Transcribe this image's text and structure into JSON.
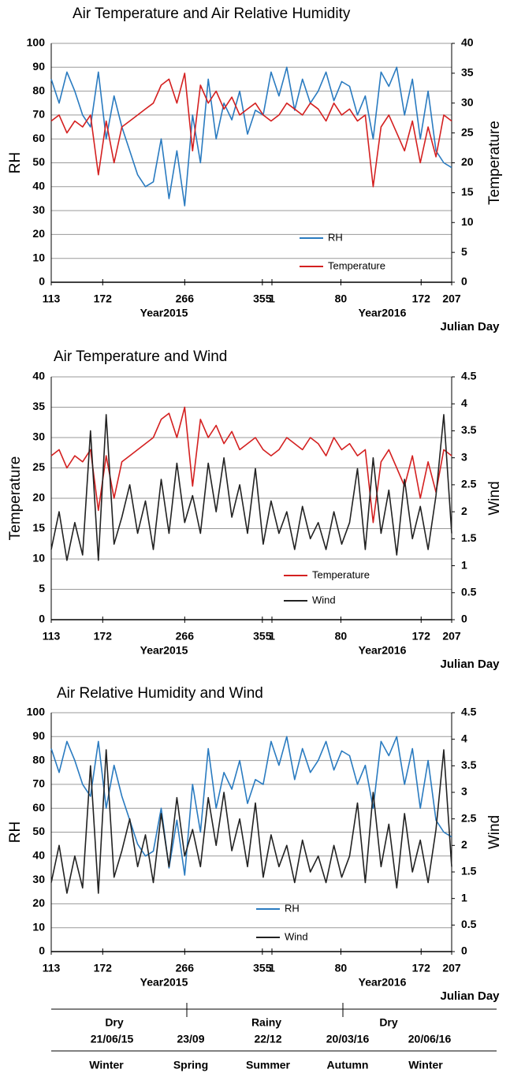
{
  "chart_data": [
    {
      "type": "line",
      "title": "Air Temperature and Air Relative Humidity",
      "ylabel": "RH",
      "y2label": "Temperature",
      "xlabel": "Julian Day",
      "x_group_labels": [
        "Year2015",
        "Year2016"
      ],
      "x": [
        113,
        122,
        131,
        140,
        149,
        158,
        167,
        176,
        185,
        194,
        203,
        212,
        221,
        230,
        239,
        248,
        257,
        266,
        275,
        284,
        293,
        302,
        311,
        320,
        329,
        338,
        347,
        356,
        365,
        374,
        383,
        392,
        401,
        410,
        419,
        428,
        437,
        446,
        455,
        464,
        473,
        482,
        491,
        500,
        509,
        518,
        527,
        536,
        545,
        554,
        563,
        572
      ],
      "xlim": [
        113,
        572
      ],
      "xticks": [
        113,
        172,
        266,
        355,
        {
          "value": 366,
          "label": "1"
        },
        {
          "value": 445,
          "label": "80"
        },
        {
          "value": 537,
          "label": "172"
        },
        {
          "value": 572,
          "label": "207"
        }
      ],
      "ylim": [
        0,
        100
      ],
      "yticks": [
        0,
        10,
        20,
        30,
        40,
        50,
        60,
        70,
        80,
        90,
        100
      ],
      "y2lim": [
        0,
        40
      ],
      "y2ticks": [
        0,
        5,
        10,
        15,
        20,
        25,
        30,
        35,
        40
      ],
      "grid": true,
      "legend": "bottom",
      "series": [
        {
          "name": "RH",
          "color": "#2a7bc0",
          "values": [
            85,
            75,
            88,
            80,
            70,
            65,
            88,
            60,
            78,
            65,
            55,
            45,
            40,
            42,
            60,
            35,
            55,
            32,
            70,
            50,
            85,
            60,
            75,
            68,
            80,
            62,
            72,
            70,
            88,
            78,
            90,
            72,
            85,
            75,
            80,
            88,
            76,
            84,
            82,
            70,
            78,
            60,
            88,
            82,
            90,
            70,
            85,
            60,
            80,
            55,
            50,
            48
          ]
        },
        {
          "name": "Temperature",
          "color": "#d42020",
          "axis": "y2",
          "values": [
            27,
            28,
            25,
            27,
            26,
            28,
            18,
            27,
            20,
            26,
            27,
            28,
            29,
            30,
            33,
            34,
            30,
            35,
            22,
            33,
            30,
            32,
            29,
            31,
            28,
            29,
            30,
            28,
            27,
            28,
            30,
            29,
            28,
            30,
            29,
            27,
            30,
            28,
            29,
            27,
            28,
            16,
            26,
            28,
            25,
            22,
            27,
            20,
            26,
            21,
            28,
            27
          ]
        }
      ]
    },
    {
      "type": "line",
      "title": "Air Temperature and  Wind",
      "ylabel": "Temperature",
      "y2label": "Wind",
      "xlabel": "Julian Day",
      "x_group_labels": [
        "Year2015",
        "Year2016"
      ],
      "x": [
        113,
        122,
        131,
        140,
        149,
        158,
        167,
        176,
        185,
        194,
        203,
        212,
        221,
        230,
        239,
        248,
        257,
        266,
        275,
        284,
        293,
        302,
        311,
        320,
        329,
        338,
        347,
        356,
        365,
        374,
        383,
        392,
        401,
        410,
        419,
        428,
        437,
        446,
        455,
        464,
        473,
        482,
        491,
        500,
        509,
        518,
        527,
        536,
        545,
        554,
        563,
        572
      ],
      "xlim": [
        113,
        572
      ],
      "xticks": [
        113,
        172,
        266,
        355,
        {
          "value": 366,
          "label": "1"
        },
        {
          "value": 445,
          "label": "80"
        },
        {
          "value": 537,
          "label": "172"
        },
        {
          "value": 572,
          "label": "207"
        }
      ],
      "ylim": [
        0,
        40
      ],
      "yticks": [
        0,
        5,
        10,
        15,
        20,
        25,
        30,
        35,
        40
      ],
      "y2lim": [
        0,
        4.5
      ],
      "y2ticks": [
        0,
        0.5,
        1,
        1.5,
        2,
        2.5,
        3,
        3.5,
        4,
        4.5
      ],
      "grid": true,
      "legend": "bottom",
      "series": [
        {
          "name": "Temperature",
          "color": "#d42020",
          "values": [
            27,
            28,
            25,
            27,
            26,
            28,
            18,
            27,
            20,
            26,
            27,
            28,
            29,
            30,
            33,
            34,
            30,
            35,
            22,
            33,
            30,
            32,
            29,
            31,
            28,
            29,
            30,
            28,
            27,
            28,
            30,
            29,
            28,
            30,
            29,
            27,
            30,
            28,
            29,
            27,
            28,
            16,
            26,
            28,
            25,
            22,
            27,
            20,
            26,
            21,
            28,
            27
          ]
        },
        {
          "name": "Wind",
          "color": "#222222",
          "axis": "y2",
          "values": [
            1.3,
            2.0,
            1.1,
            1.8,
            1.2,
            3.5,
            1.1,
            3.8,
            1.4,
            1.9,
            2.5,
            1.6,
            2.2,
            1.3,
            2.6,
            1.6,
            2.9,
            1.8,
            2.3,
            1.6,
            2.9,
            2.0,
            3.0,
            1.9,
            2.5,
            1.6,
            2.8,
            1.4,
            2.2,
            1.6,
            2.0,
            1.3,
            2.1,
            1.5,
            1.8,
            1.3,
            2.0,
            1.4,
            1.8,
            2.8,
            1.3,
            3.0,
            1.6,
            2.4,
            1.2,
            2.6,
            1.5,
            2.1,
            1.3,
            2.3,
            3.8,
            1.6
          ]
        }
      ]
    },
    {
      "type": "line",
      "title": "Air Relative Humidity and Wind",
      "ylabel": "RH",
      "y2label": "Wind",
      "xlabel": "Julian Day",
      "x_group_labels": [
        "Year2015",
        "Year2016"
      ],
      "x": [
        113,
        122,
        131,
        140,
        149,
        158,
        167,
        176,
        185,
        194,
        203,
        212,
        221,
        230,
        239,
        248,
        257,
        266,
        275,
        284,
        293,
        302,
        311,
        320,
        329,
        338,
        347,
        356,
        365,
        374,
        383,
        392,
        401,
        410,
        419,
        428,
        437,
        446,
        455,
        464,
        473,
        482,
        491,
        500,
        509,
        518,
        527,
        536,
        545,
        554,
        563,
        572
      ],
      "xlim": [
        113,
        572
      ],
      "xticks": [
        113,
        172,
        266,
        355,
        {
          "value": 366,
          "label": "1"
        },
        {
          "value": 445,
          "label": "80"
        },
        {
          "value": 537,
          "label": "172"
        },
        {
          "value": 572,
          "label": "207"
        }
      ],
      "ylim": [
        0,
        100
      ],
      "yticks": [
        0,
        10,
        20,
        30,
        40,
        50,
        60,
        70,
        80,
        90,
        100
      ],
      "y2lim": [
        0,
        4.5
      ],
      "y2ticks": [
        0,
        0.5,
        1,
        1.5,
        2,
        2.5,
        3,
        3.5,
        4,
        4.5
      ],
      "grid": true,
      "legend": "bottom",
      "series": [
        {
          "name": "RH",
          "color": "#2a7bc0",
          "values": [
            85,
            75,
            88,
            80,
            70,
            65,
            88,
            60,
            78,
            65,
            55,
            45,
            40,
            42,
            60,
            35,
            55,
            32,
            70,
            50,
            85,
            60,
            75,
            68,
            80,
            62,
            72,
            70,
            88,
            78,
            90,
            72,
            85,
            75,
            80,
            88,
            76,
            84,
            82,
            70,
            78,
            60,
            88,
            82,
            90,
            70,
            85,
            60,
            80,
            55,
            50,
            48
          ]
        },
        {
          "name": "Wind",
          "color": "#222222",
          "axis": "y2",
          "values": [
            1.3,
            2.0,
            1.1,
            1.8,
            1.2,
            3.5,
            1.1,
            3.8,
            1.4,
            1.9,
            2.5,
            1.6,
            2.2,
            1.3,
            2.6,
            1.6,
            2.9,
            1.8,
            2.3,
            1.6,
            2.9,
            2.0,
            3.0,
            1.9,
            2.5,
            1.6,
            2.8,
            1.4,
            2.2,
            1.6,
            2.0,
            1.3,
            2.1,
            1.5,
            1.8,
            1.3,
            2.0,
            1.4,
            1.8,
            2.8,
            1.3,
            3.0,
            1.6,
            2.4,
            1.2,
            2.6,
            1.5,
            2.1,
            1.3,
            2.3,
            3.8,
            1.6
          ]
        }
      ]
    }
  ],
  "season_table": {
    "rainfall": [
      "Dry",
      "Rainy",
      "Dry"
    ],
    "dates": [
      "21/06/15",
      "23/09",
      "22/12",
      "20/03/16",
      "20/06/16"
    ],
    "seasons": [
      "Winter",
      "Spring",
      "Summer",
      "Autumn",
      "Winter"
    ]
  }
}
